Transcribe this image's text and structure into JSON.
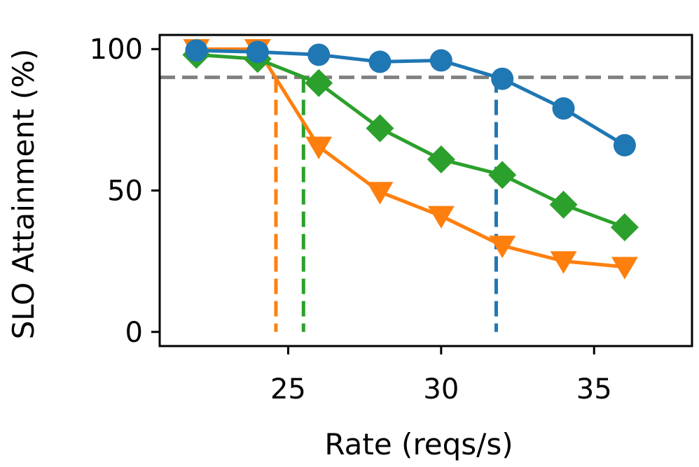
{
  "chart_data": {
    "type": "line",
    "title": "",
    "xlabel": "Rate (reqs/s)",
    "ylabel": "SLO Attainment (%)",
    "xlim": [
      20.8,
      38.2
    ],
    "ylim": [
      -5,
      105
    ],
    "xticks": [
      25,
      30,
      35
    ],
    "yticks": [
      0,
      50,
      100
    ],
    "x": [
      22,
      24,
      26,
      28,
      30,
      32,
      34,
      36
    ],
    "reference_line": {
      "y": 90,
      "color": "#808080",
      "style": "dashed"
    },
    "series": [
      {
        "name": "blue-series",
        "color": "#1f77b4",
        "marker": "circle",
        "values": [
          99.5,
          99,
          98,
          95.5,
          96,
          89.5,
          79,
          66
        ],
        "threshold_x": 31.8
      },
      {
        "name": "orange-series",
        "color": "#ff7f0e",
        "marker": "triangle-down",
        "values": [
          100,
          100,
          65.5,
          49.5,
          41,
          30.5,
          25,
          23
        ],
        "threshold_x": 24.6
      },
      {
        "name": "green-series",
        "color": "#2ca02c",
        "marker": "diamond",
        "values": [
          98,
          96.5,
          88,
          72,
          61,
          55.5,
          45,
          37
        ],
        "threshold_x": 25.5
      }
    ],
    "grid": false,
    "legend": "none"
  }
}
